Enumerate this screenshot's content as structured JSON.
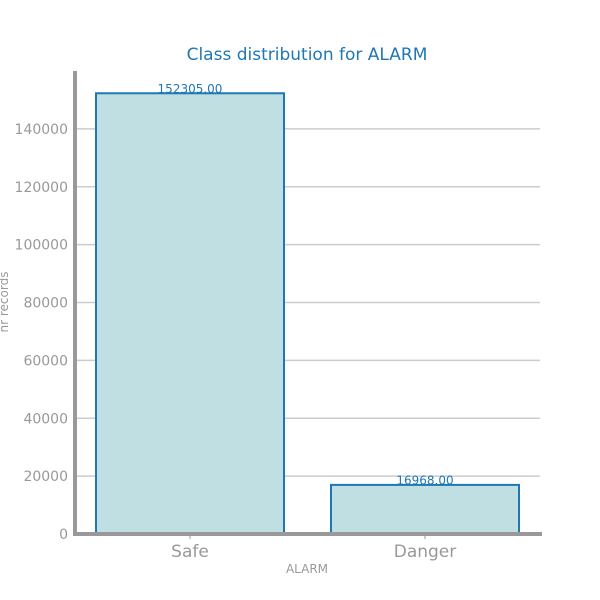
{
  "chart_data": {
    "type": "bar",
    "title": "Class distribution for ALARM",
    "xlabel": "ALARM",
    "ylabel": "nr records",
    "categories": [
      "Safe",
      "Danger"
    ],
    "values": [
      152305.0,
      16968.0
    ],
    "value_labels": [
      "152305.00",
      "16968.00"
    ],
    "ylim": [
      0,
      160000
    ],
    "yticks": [
      0,
      20000,
      40000,
      60000,
      80000,
      100000,
      120000,
      140000
    ],
    "grid": true,
    "bar_fill": "#bfdfe3",
    "bar_edge": "#1f77b4",
    "title_color": "#1f77b4",
    "axis_color": "#999999"
  }
}
